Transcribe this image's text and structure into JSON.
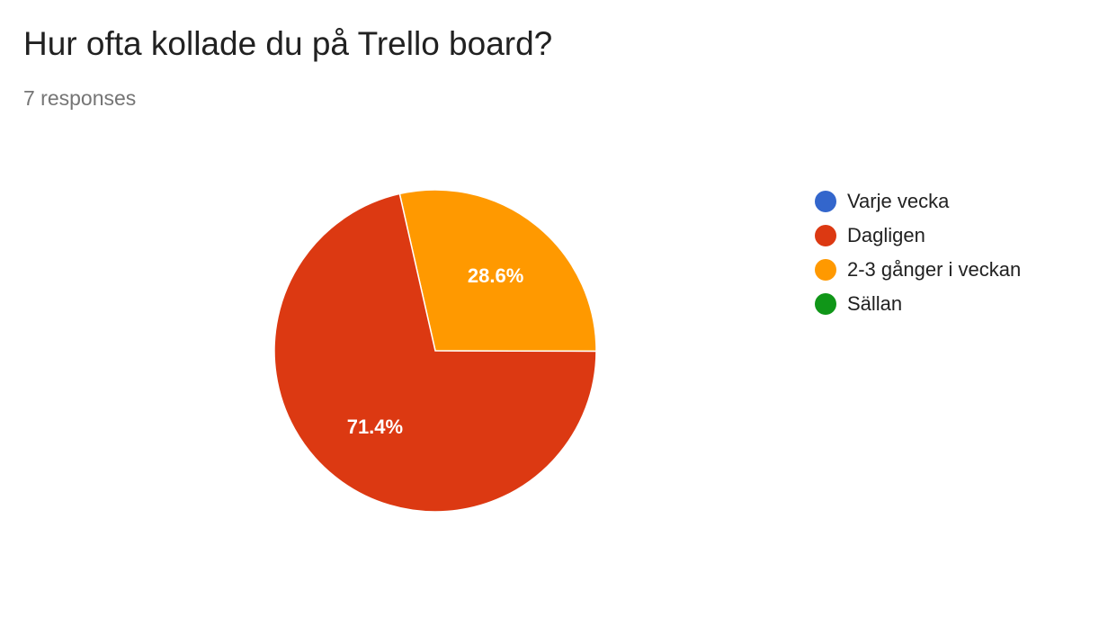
{
  "header": {
    "title": "Hur ofta kollade du på Trello board?",
    "responses": "7 responses"
  },
  "chart_data": {
    "type": "pie",
    "categories": [
      "Varje vecka",
      "Dagligen",
      "2-3 gånger i veckan",
      "Sällan"
    ],
    "values": [
      0,
      71.4,
      28.6,
      0
    ],
    "value_labels": [
      "",
      "71.4%",
      "28.6%",
      ""
    ],
    "colors": [
      "#3366cc",
      "#dc3912",
      "#ff9900",
      "#109618"
    ],
    "legend_position": "right",
    "title": "Hur ofta kollade du på Trello board?",
    "subtitle": "7 responses"
  }
}
